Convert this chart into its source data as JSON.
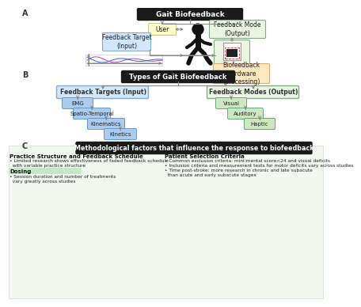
{
  "title": "Gait Biofeedback",
  "section_b_title": "Types of Gait Biofeedback",
  "section_c_title": "Methodological factors that influence the response to biofeedback",
  "bg_color": "#ffffff",
  "black_box_color": "#1a1a1a",
  "black_box_text_color": "#ffffff",
  "yellow_box_color": "#ffffcc",
  "green_box_color": "#e8f5e0",
  "blue_box_light": "#cce0f5",
  "blue_box_mid": "#aaccee",
  "light_green_box_color": "#cce8c0",
  "peach_box_color": "#fde8c0",
  "arrow_color": "#888888",
  "left_col_title": "Practice Structure and Feedback Schedule",
  "left_col_line1": "• Limited research shows effectiveness of faded feedback schedule",
  "left_col_line2": "  with variable practice structure",
  "dosing_label": "Dosing",
  "dosing_line1": "• Session duration and number of treatments",
  "dosing_line2": "  vary greatly across studies",
  "right_col_title": "Patient Selection Criteria",
  "right_col_line1": "• Common exclusion criteria: mini-mental score<24 and visual deficits",
  "right_col_line2": "• Inclusion criteria and measurement tests for motor deficits vary across studies",
  "right_col_line3": "• Time post-stroke: more research in chronic and late subacute",
  "right_col_line4": "  than acute and early subacute stages",
  "feedback_targets_label": "Feedback Targets (Input)",
  "feedback_modes_label": "Feedback Modes (Output)",
  "input_items": [
    "EMG",
    "Spatio-Temporal",
    "Kinematics",
    "Kinetics"
  ],
  "output_items": [
    "Visual",
    "Auditory",
    "Haptic"
  ],
  "user_label": "User",
  "feedback_mode_label": "Feedback Mode\n(Output)",
  "feedback_target_label": "Feedback Target\n(Input)",
  "hardware_label": "Biofeedback\nhardware\n(processing)"
}
